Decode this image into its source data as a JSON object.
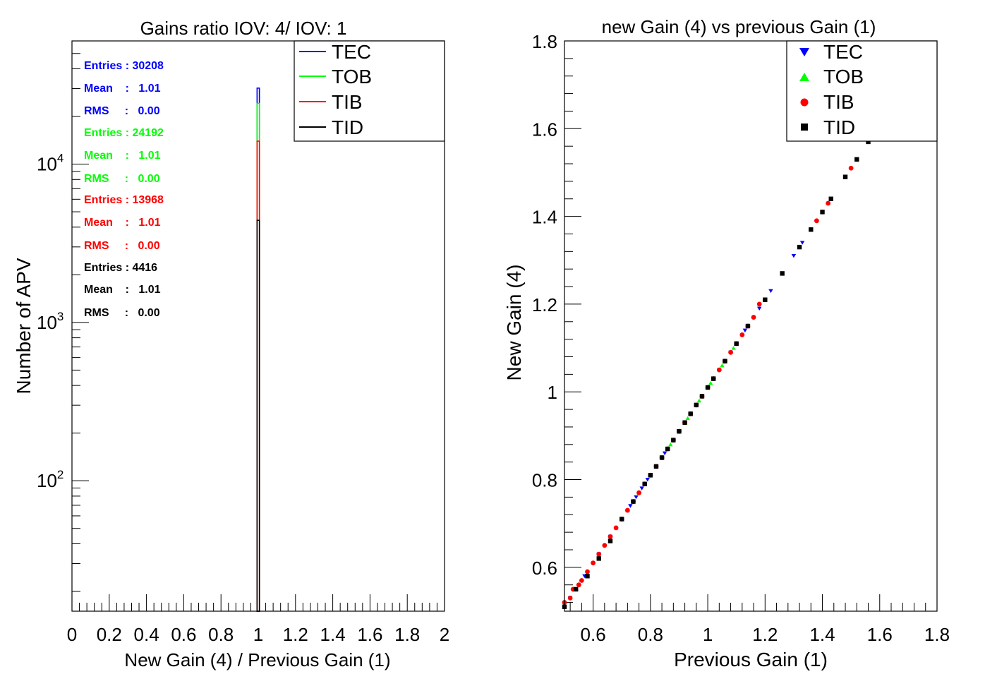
{
  "chart_data": [
    {
      "type": "bar",
      "title": "Gains ratio IOV: 4/ IOV: 1",
      "xlabel": "New Gain (4) / Previous Gain (1)",
      "ylabel": "Number of APV",
      "xlim": [
        0,
        2
      ],
      "ylim": [
        15,
        60000
      ],
      "log_y": true,
      "x_ticks": [
        "0",
        "0.2",
        "0.4",
        "0.6",
        "0.8",
        "1",
        "1.2",
        "1.4",
        "1.6",
        "1.8",
        "2"
      ],
      "y_ticks": [
        {
          "base": "10",
          "exp": "2",
          "value": 100
        },
        {
          "base": "10",
          "exp": "3",
          "value": 1000
        },
        {
          "base": "10",
          "exp": "4",
          "value": 10000
        }
      ],
      "bin": [
        0.99,
        1.01
      ],
      "stacked": true,
      "legend_position": "top-right",
      "series": [
        {
          "name": "TEC",
          "color": "#0000ff",
          "count": 30208,
          "stat_entries": "Entries : 30208",
          "stat_mean": "Mean    :   1.01",
          "stat_rms": "RMS     :   0.00"
        },
        {
          "name": "TOB",
          "color": "#00ff00",
          "count": 24192,
          "stat_entries": "Entries : 24192",
          "stat_mean": "Mean    :   1.01",
          "stat_rms": "RMS     :   0.00"
        },
        {
          "name": "TIB",
          "color": "#ff0000",
          "count": 13968,
          "stat_entries": "Entries : 13968",
          "stat_mean": "Mean    :   1.01",
          "stat_rms": "RMS     :   0.00"
        },
        {
          "name": "TID",
          "color": "#000000",
          "count": 4416,
          "stat_entries": "Entries : 4416",
          "stat_mean": "Mean    :   1.01",
          "stat_rms": "RMS     :   0.00"
        }
      ]
    },
    {
      "type": "scatter",
      "title": "new Gain (4) vs previous Gain (1)",
      "xlabel": "Previous Gain (1)",
      "ylabel": "New Gain (4)",
      "xlim": [
        0.5,
        1.8
      ],
      "ylim": [
        0.5,
        1.8
      ],
      "x_ticks": [
        "0.6",
        "0.8",
        "1",
        "1.2",
        "1.4",
        "1.6",
        "1.8"
      ],
      "y_ticks": [
        "0.6",
        "0.8",
        "1",
        "1.2",
        "1.4",
        "1.6",
        "1.8"
      ],
      "legend_position": "top-right",
      "trend": "points lie along New = 1.01 x Previous",
      "series": [
        {
          "name": "TEC",
          "color": "#0000ff",
          "marker": "triangle-down",
          "points": [
            [
              0.52,
              0.53
            ],
            [
              0.57,
              0.58
            ],
            [
              0.62,
              0.63
            ],
            [
              0.66,
              0.67
            ],
            [
              0.7,
              0.71
            ],
            [
              0.73,
              0.74
            ],
            [
              0.75,
              0.76
            ],
            [
              0.77,
              0.78
            ],
            [
              0.79,
              0.8
            ],
            [
              0.82,
              0.83
            ],
            [
              0.85,
              0.86
            ],
            [
              0.88,
              0.89
            ],
            [
              0.92,
              0.93
            ],
            [
              0.96,
              0.97
            ],
            [
              1.0,
              1.01
            ],
            [
              1.04,
              1.05
            ],
            [
              1.08,
              1.09
            ],
            [
              1.13,
              1.14
            ],
            [
              1.18,
              1.19
            ],
            [
              1.22,
              1.23
            ],
            [
              1.26,
              1.27
            ],
            [
              1.3,
              1.31
            ],
            [
              1.33,
              1.34
            ]
          ]
        },
        {
          "name": "TOB",
          "color": "#00ff00",
          "marker": "triangle-up",
          "points": [
            [
              0.68,
              0.69
            ],
            [
              0.72,
              0.73
            ],
            [
              0.74,
              0.75
            ],
            [
              0.76,
              0.77
            ],
            [
              0.78,
              0.79
            ],
            [
              0.8,
              0.81
            ],
            [
              0.82,
              0.83
            ],
            [
              0.84,
              0.85
            ],
            [
              0.87,
              0.88
            ],
            [
              0.9,
              0.91
            ],
            [
              0.93,
              0.94
            ],
            [
              0.97,
              0.98
            ],
            [
              1.01,
              1.02
            ],
            [
              1.05,
              1.06
            ],
            [
              1.09,
              1.1
            ]
          ]
        },
        {
          "name": "TIB",
          "color": "#ff0000",
          "marker": "circle",
          "points": [
            [
              0.5,
              0.52
            ],
            [
              0.52,
              0.53
            ],
            [
              0.53,
              0.55
            ],
            [
              0.55,
              0.56
            ],
            [
              0.56,
              0.57
            ],
            [
              0.58,
              0.59
            ],
            [
              0.6,
              0.61
            ],
            [
              0.62,
              0.63
            ],
            [
              0.64,
              0.65
            ],
            [
              0.66,
              0.67
            ],
            [
              0.68,
              0.69
            ],
            [
              0.7,
              0.71
            ],
            [
              0.72,
              0.73
            ],
            [
              0.74,
              0.75
            ],
            [
              0.76,
              0.77
            ],
            [
              0.78,
              0.79
            ],
            [
              0.8,
              0.81
            ],
            [
              0.82,
              0.83
            ],
            [
              0.84,
              0.85
            ],
            [
              0.86,
              0.87
            ],
            [
              0.88,
              0.89
            ],
            [
              0.9,
              0.91
            ],
            [
              0.92,
              0.93
            ],
            [
              0.94,
              0.95
            ],
            [
              0.96,
              0.97
            ],
            [
              0.98,
              0.99
            ],
            [
              1.0,
              1.01
            ],
            [
              1.02,
              1.03
            ],
            [
              1.04,
              1.05
            ],
            [
              1.06,
              1.07
            ],
            [
              1.08,
              1.09
            ],
            [
              1.1,
              1.11
            ],
            [
              1.12,
              1.13
            ],
            [
              1.14,
              1.15
            ],
            [
              1.16,
              1.17
            ],
            [
              1.18,
              1.2
            ],
            [
              1.38,
              1.39
            ],
            [
              1.42,
              1.43
            ],
            [
              1.5,
              1.51
            ]
          ]
        },
        {
          "name": "TID",
          "color": "#000000",
          "marker": "square",
          "points": [
            [
              0.5,
              0.51
            ],
            [
              0.54,
              0.55
            ],
            [
              0.58,
              0.58
            ],
            [
              0.62,
              0.62
            ],
            [
              0.66,
              0.66
            ],
            [
              0.7,
              0.71
            ],
            [
              0.74,
              0.75
            ],
            [
              0.78,
              0.79
            ],
            [
              0.8,
              0.81
            ],
            [
              0.82,
              0.83
            ],
            [
              0.84,
              0.85
            ],
            [
              0.86,
              0.87
            ],
            [
              0.88,
              0.89
            ],
            [
              0.9,
              0.91
            ],
            [
              0.92,
              0.93
            ],
            [
              0.94,
              0.95
            ],
            [
              0.96,
              0.97
            ],
            [
              0.98,
              0.99
            ],
            [
              1.0,
              1.01
            ],
            [
              1.02,
              1.03
            ],
            [
              1.06,
              1.07
            ],
            [
              1.1,
              1.11
            ],
            [
              1.14,
              1.15
            ],
            [
              1.2,
              1.21
            ],
            [
              1.26,
              1.27
            ],
            [
              1.32,
              1.33
            ],
            [
              1.36,
              1.37
            ],
            [
              1.4,
              1.41
            ],
            [
              1.43,
              1.44
            ],
            [
              1.48,
              1.49
            ],
            [
              1.52,
              1.53
            ],
            [
              1.56,
              1.57
            ],
            [
              1.6,
              1.62
            ],
            [
              1.64,
              1.66
            ]
          ]
        }
      ]
    }
  ]
}
